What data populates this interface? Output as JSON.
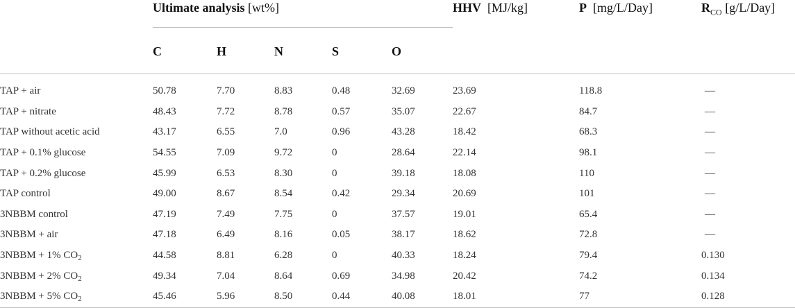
{
  "headers": {
    "ultimate_label": "Ultimate analysis",
    "ultimate_unit": "[wt%]",
    "elements": [
      "C",
      "H",
      "N",
      "S",
      "O"
    ],
    "hhv_label": "HHV",
    "hhv_unit": "[MJ/kg]",
    "p_label": "P",
    "p_unit": "[mg/L/Day]",
    "rco_label": "R",
    "rco_sub": "CO",
    "rco_unit": "[g/L/Day]"
  },
  "rows": [
    {
      "name": "TAP + air",
      "name_sub": "",
      "C": "50.78",
      "H": "7.70",
      "N": "8.83",
      "S": "0.48",
      "O": "32.69",
      "HHV": "23.69",
      "P": "118.8",
      "RCO": "—"
    },
    {
      "name": "TAP + nitrate",
      "name_sub": "",
      "C": "48.43",
      "H": "7.72",
      "N": "8.78",
      "S": "0.57",
      "O": "35.07",
      "HHV": "22.67",
      "P": "84.7",
      "RCO": "—"
    },
    {
      "name": "TAP without acetic acid",
      "name_sub": "",
      "C": "43.17",
      "H": "6.55",
      "N": "7.0",
      "S": "0.96",
      "O": "43.28",
      "HHV": "18.42",
      "P": "68.3",
      "RCO": "—"
    },
    {
      "name": "TAP + 0.1% glucose",
      "name_sub": "",
      "C": "54.55",
      "H": "7.09",
      "N": "9.72",
      "S": "0",
      "O": "28.64",
      "HHV": "22.14",
      "P": "98.1",
      "RCO": "—"
    },
    {
      "name": "TAP + 0.2% glucose",
      "name_sub": "",
      "C": "45.99",
      "H": "6.53",
      "N": "8.30",
      "S": "0",
      "O": "39.18",
      "HHV": "18.08",
      "P": "110",
      "RCO": "—"
    },
    {
      "name": "TAP control",
      "name_sub": "",
      "C": "49.00",
      "H": "8.67",
      "N": "8.54",
      "S": "0.42",
      "O": "29.34",
      "HHV": "20.69",
      "P": "101",
      "RCO": "—"
    },
    {
      "name": "3NBBM control",
      "name_sub": "",
      "C": "47.19",
      "H": "7.49",
      "N": "7.75",
      "S": "0",
      "O": "37.57",
      "HHV": "19.01",
      "P": "65.4",
      "RCO": "—"
    },
    {
      "name": "3NBBM + air",
      "name_sub": "",
      "C": "47.18",
      "H": "6.49",
      "N": "8.16",
      "S": "0.05",
      "O": "38.17",
      "HHV": "18.62",
      "P": "72.8",
      "RCO": "—"
    },
    {
      "name": "3NBBM + 1% CO",
      "name_sub": "2",
      "C": "44.58",
      "H": "8.81",
      "N": "6.28",
      "S": "0",
      "O": "40.33",
      "HHV": "18.24",
      "P": "79.4",
      "RCO": "0.130"
    },
    {
      "name": "3NBBM + 2% CO",
      "name_sub": "2",
      "C": "49.34",
      "H": "7.04",
      "N": "8.64",
      "S": "0.69",
      "O": "34.98",
      "HHV": "20.42",
      "P": "74.2",
      "RCO": "0.134"
    },
    {
      "name": "3NBBM + 5% CO",
      "name_sub": "2",
      "C": "45.46",
      "H": "5.96",
      "N": "8.50",
      "S": "0.44",
      "O": "40.08",
      "HHV": "18.01",
      "P": "77",
      "RCO": "0.128"
    }
  ]
}
